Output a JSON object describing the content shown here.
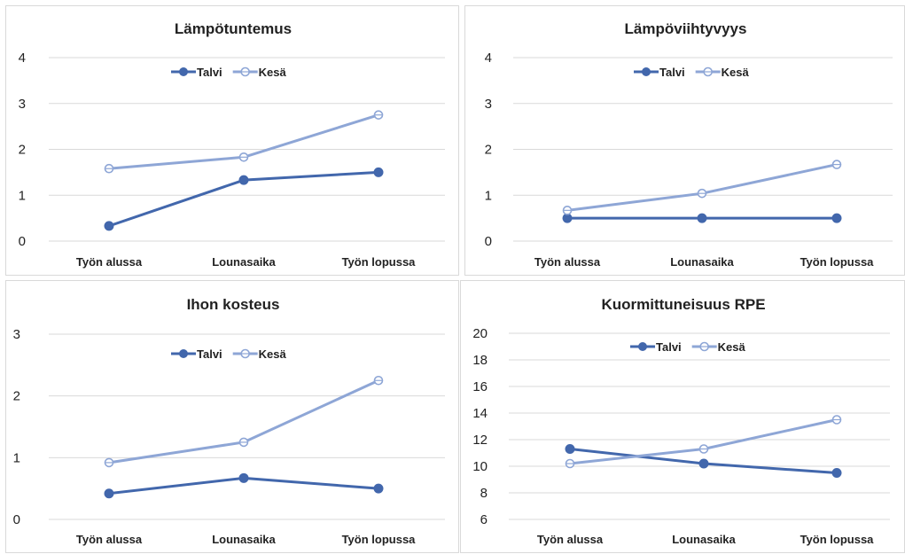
{
  "chart_data": [
    {
      "type": "line",
      "title": "Lämpötuntemus",
      "categories": [
        "Työn alussa",
        "Lounasaika",
        "Työn lopussa"
      ],
      "ylim": [
        0,
        4
      ],
      "yticks": [
        0,
        1,
        2,
        3,
        4
      ],
      "grid": true,
      "legend": "top",
      "series": [
        {
          "name": "Talvi",
          "values": [
            0.33,
            1.33,
            1.5
          ],
          "color": "#4267ac",
          "marker": "filled"
        },
        {
          "name": "Kesä",
          "values": [
            1.58,
            1.83,
            2.75
          ],
          "color": "#8ea6d6",
          "marker": "hollow"
        }
      ]
    },
    {
      "type": "line",
      "title": "Lämpöviihtyvyys",
      "categories": [
        "Työn alussa",
        "Lounasaika",
        "Työn lopussa"
      ],
      "ylim": [
        0,
        4
      ],
      "yticks": [
        0,
        1,
        2,
        3,
        4
      ],
      "grid": true,
      "legend": "top",
      "series": [
        {
          "name": "Talvi",
          "values": [
            0.5,
            0.5,
            0.5
          ],
          "color": "#4267ac",
          "marker": "filled"
        },
        {
          "name": "Kesä",
          "values": [
            0.67,
            1.04,
            1.67
          ],
          "color": "#8ea6d6",
          "marker": "hollow"
        }
      ]
    },
    {
      "type": "line",
      "title": "Ihon kosteus",
      "categories": [
        "Työn alussa",
        "Lounasaika",
        "Työn lopussa"
      ],
      "ylim": [
        0,
        3
      ],
      "yticks": [
        0,
        1,
        2,
        3
      ],
      "grid": true,
      "legend": "top",
      "series": [
        {
          "name": "Talvi",
          "values": [
            0.42,
            0.67,
            0.5
          ],
          "color": "#4267ac",
          "marker": "filled"
        },
        {
          "name": "Kesä",
          "values": [
            0.92,
            1.25,
            2.25
          ],
          "color": "#8ea6d6",
          "marker": "hollow"
        }
      ]
    },
    {
      "type": "line",
      "title": "Kuormittuneisuus RPE",
      "categories": [
        "Työn alussa",
        "Lounasaika",
        "Työn lopussa"
      ],
      "ylim": [
        6,
        20
      ],
      "yticks": [
        6,
        8,
        10,
        12,
        14,
        16,
        18,
        20
      ],
      "grid": true,
      "legend": "top",
      "series": [
        {
          "name": "Talvi",
          "values": [
            11.3,
            10.2,
            9.5
          ],
          "color": "#4267ac",
          "marker": "filled"
        },
        {
          "name": "Kesä",
          "values": [
            10.2,
            11.3,
            13.5
          ],
          "color": "#8ea6d6",
          "marker": "hollow"
        }
      ]
    }
  ]
}
